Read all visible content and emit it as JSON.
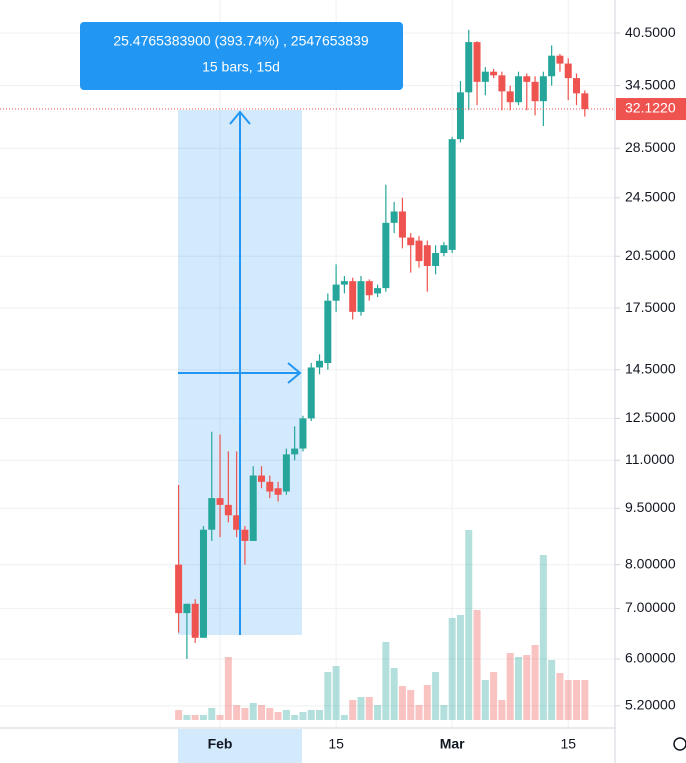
{
  "chart_data": {
    "type": "candlestick",
    "categories": [
      null,
      null,
      null,
      null,
      null,
      "Feb",
      null,
      null,
      null,
      null,
      null,
      null,
      null,
      null,
      null,
      null,
      null,
      null,
      null,
      "15",
      null,
      null,
      null,
      null,
      null,
      null,
      null,
      null,
      null,
      null,
      null,
      null,
      null,
      "Mar",
      null,
      null,
      null,
      null,
      null,
      null,
      null,
      null,
      null,
      null,
      null,
      null,
      null,
      "15",
      null,
      null
    ],
    "open": [
      8.0,
      6.9,
      7.1,
      6.4,
      8.9,
      9.8,
      9.6,
      9.3,
      8.9,
      8.6,
      10.5,
      10.3,
      10.1,
      10.0,
      11.2,
      11.4,
      12.5,
      14.6,
      14.8,
      17.9,
      18.8,
      19.0,
      17.3,
      19.0,
      18.3,
      18.6,
      22.7,
      23.5,
      21.7,
      21.5,
      21.2,
      19.9,
      20.7,
      20.9,
      29.3,
      33.8,
      39.4,
      34.9,
      36.0,
      35.6,
      33.9,
      32.8,
      35.5,
      34.9,
      32.9,
      35.5,
      37.8,
      36.9,
      35.3,
      33.7
    ],
    "high": [
      10.2,
      7.1,
      7.2,
      9.0,
      12.0,
      11.9,
      11.3,
      11.3,
      9.0,
      10.8,
      10.8,
      10.5,
      10.3,
      11.4,
      12.2,
      12.6,
      14.8,
      15.2,
      18.3,
      20.0,
      19.3,
      19.2,
      19.3,
      19.1,
      18.8,
      25.5,
      24.2,
      24.5,
      22.0,
      21.8,
      21.5,
      21.2,
      21.4,
      29.5,
      35.0,
      40.9,
      39.5,
      36.5,
      36.3,
      36.0,
      34.5,
      36.0,
      35.8,
      35.5,
      36.0,
      39.0,
      38.0,
      37.5,
      35.8,
      34.0
    ],
    "low": [
      6.5,
      6.0,
      6.3,
      6.4,
      8.6,
      8.7,
      9.1,
      8.7,
      8.0,
      8.6,
      10.1,
      9.8,
      9.7,
      9.9,
      11.0,
      11.3,
      12.4,
      14.3,
      14.5,
      17.3,
      18.3,
      16.9,
      17.1,
      17.9,
      18.1,
      18.4,
      22.0,
      21.0,
      19.5,
      19.8,
      18.4,
      19.4,
      20.5,
      20.7,
      29.0,
      32.0,
      32.5,
      33.5,
      35.3,
      32.0,
      32.0,
      32.5,
      32.0,
      31.5,
      30.5,
      34.5,
      36.0,
      33.0,
      32.5,
      31.4
    ],
    "close": [
      6.9,
      7.1,
      6.4,
      8.9,
      9.8,
      9.6,
      9.3,
      8.9,
      8.6,
      10.5,
      10.3,
      10.0,
      9.9,
      11.2,
      11.4,
      12.5,
      14.6,
      14.9,
      17.9,
      18.8,
      19.0,
      17.3,
      19.0,
      18.2,
      18.6,
      22.7,
      23.5,
      21.7,
      21.2,
      20.2,
      19.9,
      20.7,
      21.2,
      29.3,
      33.8,
      39.4,
      34.9,
      36.0,
      35.6,
      33.9,
      32.8,
      35.5,
      34.9,
      32.9,
      35.5,
      37.8,
      36.9,
      35.3,
      33.7,
      32.122
    ],
    "volume": [
      10,
      5,
      5,
      5,
      12,
      5,
      63,
      15,
      12,
      17,
      15,
      12,
      8,
      10,
      5,
      8,
      10,
      10,
      48,
      54,
      5,
      20,
      23,
      23,
      15,
      78,
      52,
      34,
      30,
      15,
      35,
      48,
      15,
      102,
      105,
      190,
      110,
      40,
      48,
      20,
      67,
      63,
      65,
      75,
      165,
      60,
      47,
      40,
      40,
      40
    ],
    "ylim": [
      4.86,
      44.8
    ],
    "log_scale": true,
    "grid": true,
    "yticks": [
      {
        "value": 40.5,
        "label": "40.5000"
      },
      {
        "value": 34.5,
        "label": "34.5000"
      },
      {
        "value": 28.5,
        "label": "28.5000"
      },
      {
        "value": 24.5,
        "label": "24.5000"
      },
      {
        "value": 20.5,
        "label": "20.5000"
      },
      {
        "value": 17.5,
        "label": "17.5000"
      },
      {
        "value": 14.5,
        "label": "14.5000"
      },
      {
        "value": 12.5,
        "label": "12.5000"
      },
      {
        "value": 11,
        "label": "11.0000"
      },
      {
        "value": 9.5,
        "label": "9.50000"
      },
      {
        "value": 8,
        "label": "8.00000"
      },
      {
        "value": 7,
        "label": "7.00000"
      },
      {
        "value": 6,
        "label": "6.00000"
      },
      {
        "value": 5.2,
        "label": "5.20000"
      }
    ],
    "up_color": "#26a69a",
    "down_color": "#ef5350",
    "last_price": {
      "value": 32.122,
      "label": "32.1220"
    },
    "measure": {
      "line1": "25.4765383900 (393.74%) , 2547653839",
      "line2": "15 bars, 15d"
    }
  }
}
